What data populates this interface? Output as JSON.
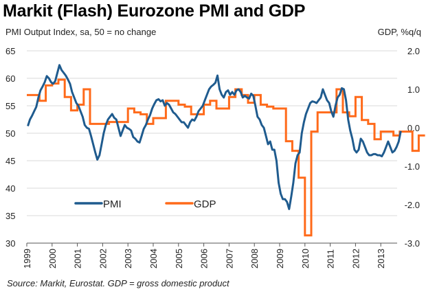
{
  "chart_data": {
    "type": "line",
    "title": "Markit (Flash) Eurozone PMI and GDP",
    "ylabel_left": "PMI Output Index, sa, 50 = no change",
    "ylabel_right": "GDP, %q/q",
    "xlabel": "",
    "source": "Source: Markit, Eurostat. GDP = gross domestic product",
    "x_ticks": [
      "1999",
      "2000",
      "2001",
      "2002",
      "2003",
      "2004",
      "2005",
      "2006",
      "2007",
      "2008",
      "2009",
      "2010",
      "2011",
      "2012",
      "2013"
    ],
    "ylim_left": [
      30,
      65
    ],
    "yticks_left": [
      "65",
      "60",
      "55",
      "50",
      "45",
      "40",
      "35",
      "30"
    ],
    "ylim_right": [
      -3.0,
      2.0
    ],
    "yticks_right": [
      "2.0",
      "1.0",
      "0.0",
      "-1.0",
      "-2.0",
      "-3.0"
    ],
    "grid": true,
    "legend_position": "lower-left",
    "series": [
      {
        "name": "PMI",
        "axis": "left",
        "color": "#1f5b8e",
        "frequency": "monthly",
        "start": "1999-01",
        "values": [
          51.3,
          52.5,
          53.2,
          54.0,
          54.8,
          56.5,
          57.8,
          58.5,
          59.3,
          60.4,
          60.0,
          59.3,
          59.0,
          59.5,
          61.0,
          62.4,
          61.5,
          61.0,
          60.5,
          59.8,
          59.0,
          57.5,
          56.5,
          55.5,
          55.0,
          54.0,
          53.0,
          51.5,
          51.0,
          50.8,
          49.5,
          48.0,
          46.5,
          45.2,
          46.0,
          48.0,
          50.0,
          51.5,
          52.5,
          53.0,
          53.5,
          52.8,
          52.5,
          51.0,
          49.5,
          50.5,
          51.5,
          51.0,
          50.8,
          50.5,
          49.3,
          49.0,
          48.5,
          48.3,
          49.5,
          50.8,
          51.5,
          52.5,
          53.3,
          54.5,
          55.3,
          56.0,
          56.2,
          55.8,
          56.0,
          55.0,
          55.5,
          55.2,
          54.5,
          53.8,
          53.5,
          53.0,
          52.5,
          52.0,
          52.0,
          51.5,
          51.0,
          52.0,
          52.5,
          52.3,
          53.0,
          54.0,
          54.5,
          55.0,
          56.0,
          57.0,
          58.0,
          58.5,
          58.8,
          59.2,
          60.5,
          58.0,
          57.0,
          56.5,
          57.5,
          57.8,
          57.0,
          57.5,
          57.0,
          57.8,
          58.0,
          57.5,
          56.5,
          56.8,
          56.5,
          56.3,
          57.2,
          56.8,
          55.0,
          53.0,
          52.5,
          51.5,
          51.0,
          49.5,
          48.0,
          48.5,
          47.0,
          47.0,
          45.0,
          41.0,
          39.0,
          38.0,
          38.0,
          37.5,
          36.2,
          38.5,
          41.0,
          44.5,
          46.0,
          46.5,
          50.0,
          52.0,
          53.5,
          54.5,
          55.5,
          55.8,
          55.7,
          55.5,
          56.0,
          56.5,
          58.0,
          57.0,
          56.0,
          55.5,
          54.0,
          53.0,
          55.0,
          56.5,
          57.0,
          58.2,
          58.0,
          56.0,
          52.5,
          50.5,
          49.0,
          47.0,
          46.5,
          47.0,
          49.0,
          48.5,
          47.5,
          46.5,
          46.0,
          46.0,
          46.2,
          46.2,
          46.0,
          46.0,
          45.8,
          46.5,
          47.5,
          48.5,
          47.5,
          46.5,
          46.8,
          47.5,
          48.5,
          50.4
        ]
      },
      {
        "name": "GDP",
        "axis": "right",
        "color": "#ff6a1a",
        "frequency": "quarterly",
        "start": "1999-Q1",
        "values": [
          0.85,
          0.85,
          0.7,
          1.1,
          1.15,
          1.25,
          0.8,
          0.45,
          0.6,
          1.0,
          0.1,
          0.1,
          0.1,
          0.15,
          0.15,
          0.15,
          0.5,
          0.4,
          0.35,
          0.1,
          0.25,
          0.25,
          0.7,
          0.7,
          0.6,
          0.55,
          0.35,
          0.35,
          0.6,
          0.7,
          0.5,
          0.5,
          0.8,
          1.0,
          0.85,
          0.65,
          0.85,
          0.6,
          0.55,
          0.5,
          0.5,
          -0.35,
          -0.6,
          -1.3,
          -2.8,
          -0.1,
          0.4,
          0.4,
          0.4,
          1.0,
          0.4,
          0.3,
          0.8,
          0.2,
          0.1,
          -0.3,
          -0.1,
          -0.1,
          -0.2,
          -0.1,
          -0.1,
          -0.6,
          -0.2
        ]
      }
    ]
  }
}
